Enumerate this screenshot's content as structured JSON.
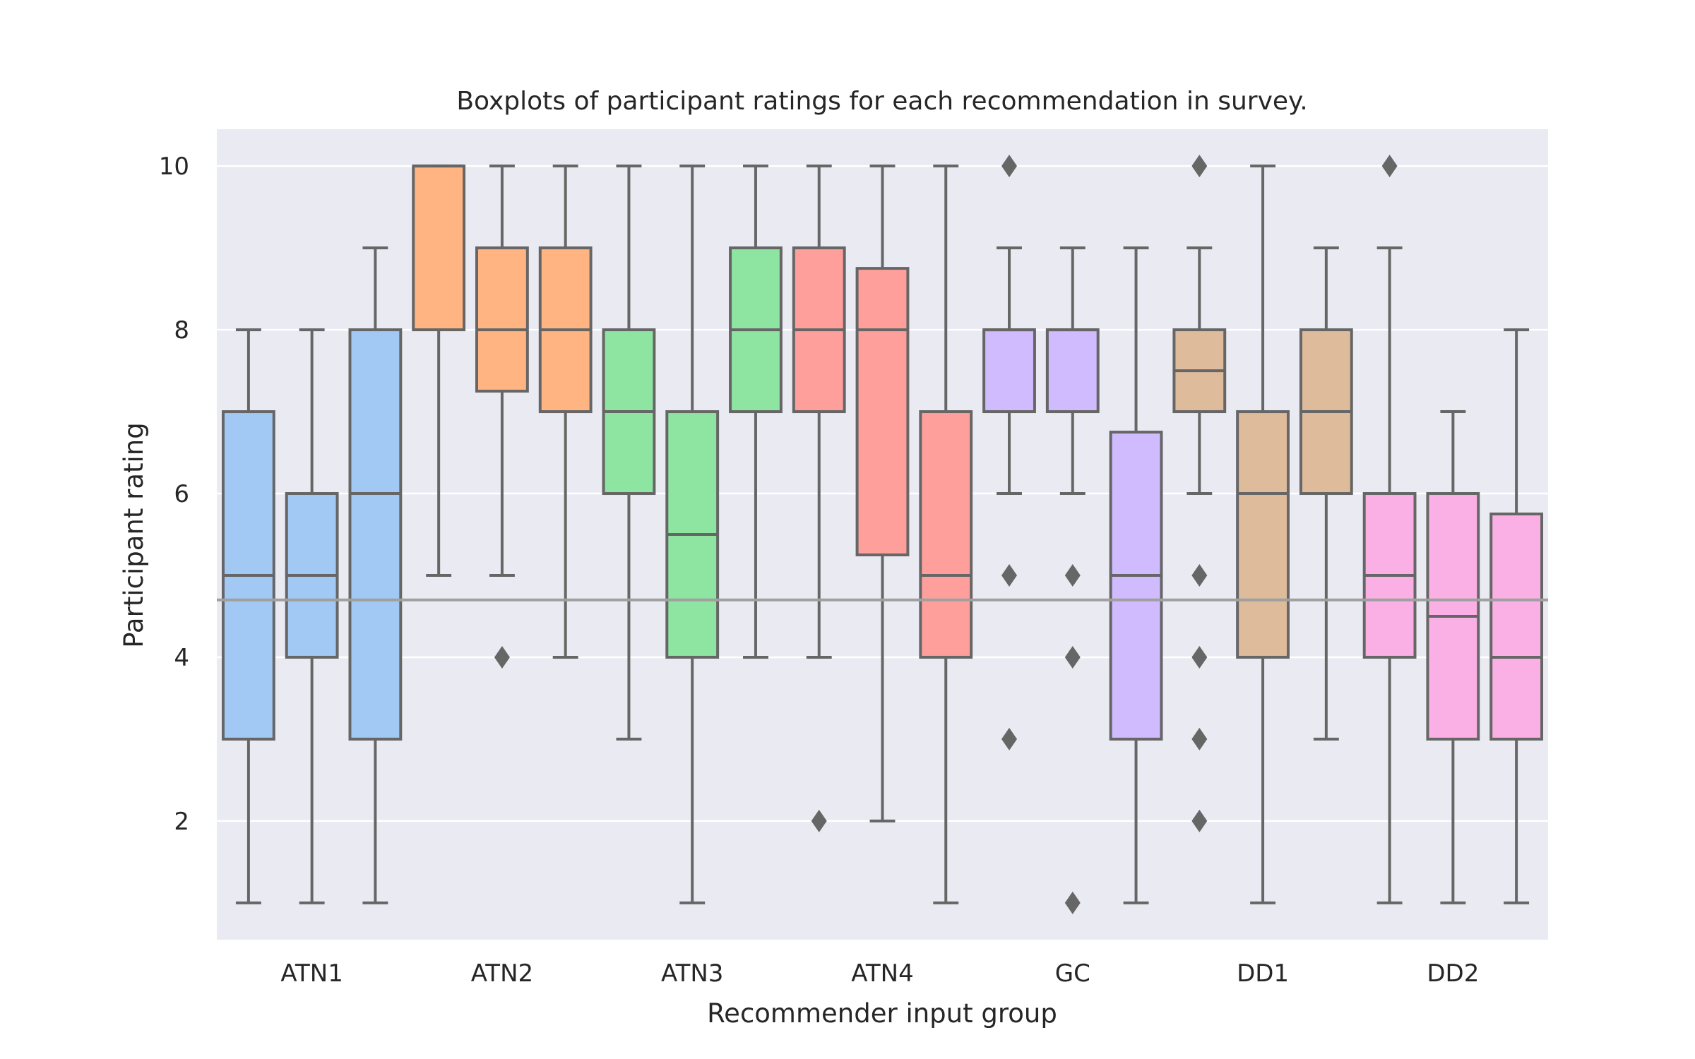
{
  "chart_data": {
    "type": "boxplot",
    "title": "Boxplots of participant ratings for each recommendation in survey.",
    "xlabel": "Recommender input group",
    "ylabel": "Participant rating",
    "ylim": [
      0.55,
      10.45
    ],
    "yticks": [
      2,
      4,
      6,
      8,
      10
    ],
    "grid": true,
    "reference_line": 4.7,
    "groups": [
      {
        "name": "ATN1",
        "color": "#a1c9f4",
        "boxes": [
          {
            "whislo": 1,
            "q1": 3,
            "med": 5,
            "q3": 7,
            "whishi": 8,
            "fliers": []
          },
          {
            "whislo": 1,
            "q1": 4,
            "med": 5,
            "q3": 6,
            "whishi": 8,
            "fliers": []
          },
          {
            "whislo": 1,
            "q1": 3,
            "med": 6,
            "q3": 8,
            "whishi": 9,
            "fliers": []
          }
        ]
      },
      {
        "name": "ATN2",
        "color": "#ffb482",
        "boxes": [
          {
            "whislo": 5,
            "q1": 8,
            "med": 10,
            "q3": 10,
            "whishi": 10,
            "fliers": []
          },
          {
            "whislo": 5,
            "q1": 7.25,
            "med": 8,
            "q3": 9,
            "whishi": 10,
            "fliers": [
              4
            ]
          },
          {
            "whislo": 4,
            "q1": 7,
            "med": 8,
            "q3": 9,
            "whishi": 10,
            "fliers": []
          }
        ]
      },
      {
        "name": "ATN3",
        "color": "#8de5a1",
        "boxes": [
          {
            "whislo": 3,
            "q1": 6,
            "med": 7,
            "q3": 8,
            "whishi": 10,
            "fliers": []
          },
          {
            "whislo": 1,
            "q1": 4,
            "med": 5.5,
            "q3": 7,
            "whishi": 10,
            "fliers": []
          },
          {
            "whislo": 4,
            "q1": 7,
            "med": 8,
            "q3": 9,
            "whishi": 10,
            "fliers": []
          }
        ]
      },
      {
        "name": "ATN4",
        "color": "#ff9f9b",
        "boxes": [
          {
            "whislo": 4,
            "q1": 7,
            "med": 8,
            "q3": 9,
            "whishi": 10,
            "fliers": [
              2
            ]
          },
          {
            "whislo": 2,
            "q1": 5.25,
            "med": 8,
            "q3": 8.75,
            "whishi": 10,
            "fliers": []
          },
          {
            "whislo": 1,
            "q1": 4,
            "med": 5,
            "q3": 7,
            "whishi": 10,
            "fliers": []
          }
        ]
      },
      {
        "name": "GC",
        "color": "#d0bbff",
        "boxes": [
          {
            "whislo": 6,
            "q1": 7,
            "med": 8,
            "q3": 8,
            "whishi": 9,
            "fliers": [
              10,
              5,
              3
            ]
          },
          {
            "whislo": 6,
            "q1": 7,
            "med": 8,
            "q3": 8,
            "whishi": 9,
            "fliers": [
              5,
              4,
              1
            ]
          },
          {
            "whislo": 1,
            "q1": 3,
            "med": 5,
            "q3": 6.75,
            "whishi": 9,
            "fliers": []
          }
        ]
      },
      {
        "name": "DD1",
        "color": "#debb9b",
        "boxes": [
          {
            "whislo": 6,
            "q1": 7,
            "med": 7.5,
            "q3": 8,
            "whishi": 9,
            "fliers": [
              10,
              5,
              4,
              3,
              2
            ]
          },
          {
            "whislo": 1,
            "q1": 4,
            "med": 6,
            "q3": 7,
            "whishi": 10,
            "fliers": []
          },
          {
            "whislo": 3,
            "q1": 6,
            "med": 7,
            "q3": 8,
            "whishi": 9,
            "fliers": []
          }
        ]
      },
      {
        "name": "DD2",
        "color": "#fab0e4",
        "boxes": [
          {
            "whislo": 1,
            "q1": 4,
            "med": 5,
            "q3": 6,
            "whishi": 9,
            "fliers": [
              10
            ]
          },
          {
            "whislo": 1,
            "q1": 3,
            "med": 4.5,
            "q3": 6,
            "whishi": 7,
            "fliers": []
          },
          {
            "whislo": 1,
            "q1": 3,
            "med": 4,
            "q3": 5.75,
            "whishi": 8,
            "fliers": []
          }
        ]
      }
    ],
    "colors": {
      "plot_background": "#eaeaf2",
      "grid": "#ffffff",
      "box_edge": "#666666",
      "reference_line": "#a0a0a0",
      "text": "#262626"
    }
  }
}
